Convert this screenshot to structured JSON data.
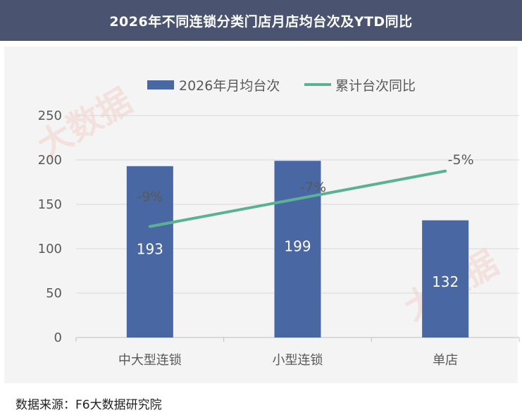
{
  "title": "2026年不同连锁分类门店月店均台次及YTD同比",
  "source": "数据来源：F6大数据研究院",
  "watermark": "大数据",
  "colors": {
    "header_bg": "#4a5470",
    "bar": "#4867a3",
    "line": "#5ab196",
    "grid": "#d9d9d9",
    "axis_text": "#595959"
  },
  "chart_data": {
    "type": "bar",
    "categories": [
      "中大型连锁",
      "小型连锁",
      "单店"
    ],
    "series": [
      {
        "name": "2026年月均台次",
        "type": "bar",
        "axis": "left",
        "values": [
          193,
          199,
          132
        ],
        "labels": [
          "193",
          "199",
          "132"
        ]
      },
      {
        "name": "累计台次同比",
        "type": "line",
        "axis": "right",
        "values": [
          -9,
          -7,
          -5
        ],
        "labels": [
          "-9%",
          "-7%",
          "-5%"
        ]
      }
    ],
    "y_ticks": [
      "250",
      "200",
      "150",
      "100",
      "50",
      "0"
    ],
    "ylim": [
      0,
      250
    ],
    "y2lim": [
      -17,
      -1
    ],
    "grid": true,
    "legend": "top-center"
  }
}
